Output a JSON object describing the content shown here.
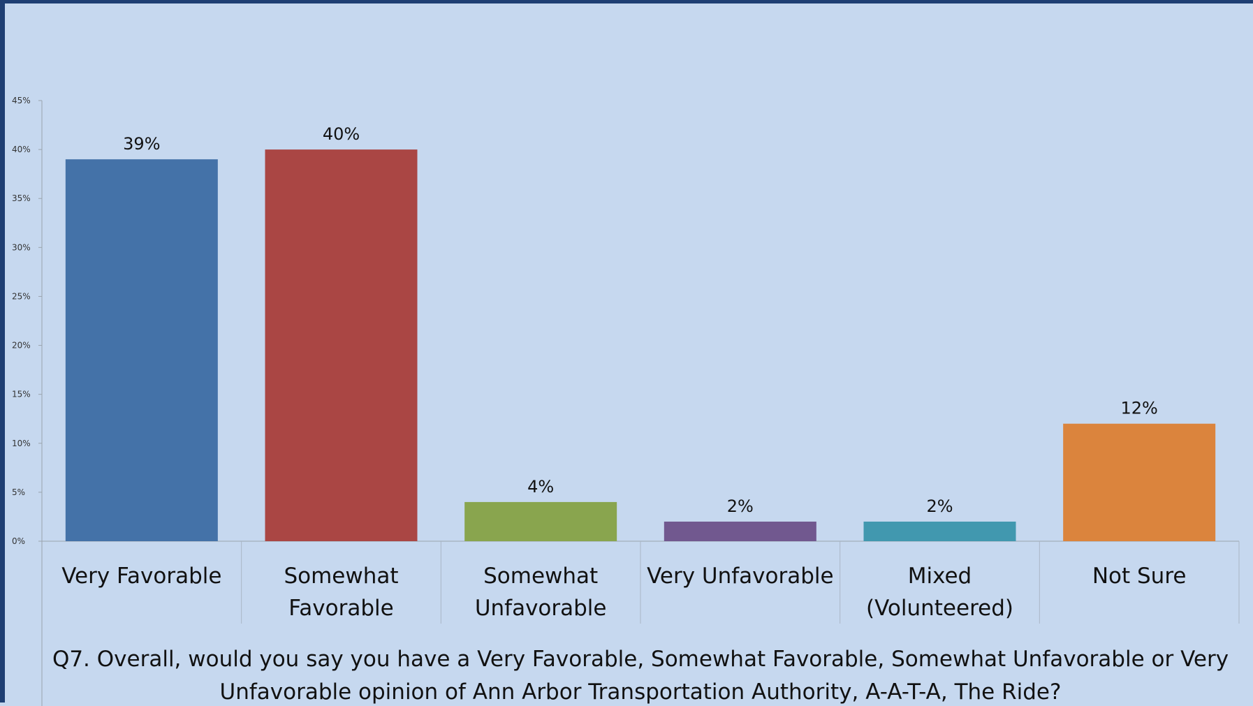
{
  "chart_data": {
    "type": "bar",
    "categories": [
      [
        "Very Favorable"
      ],
      [
        "Somewhat",
        "Favorable"
      ],
      [
        "Somewhat",
        "Unfavorable"
      ],
      [
        "Very Unfavorable"
      ],
      [
        "Mixed",
        "(Volunteered)"
      ],
      [
        "Not Sure"
      ]
    ],
    "values": [
      39,
      40,
      4,
      2,
      2,
      12
    ],
    "data_labels": [
      "39%",
      "40%",
      "4%",
      "2%",
      "2%",
      "12%"
    ],
    "colors": [
      "#4472a8",
      "#aa4644",
      "#89a54e",
      "#71588f",
      "#4198af",
      "#db843d"
    ],
    "ylim": [
      0,
      45
    ],
    "yticks": [
      0,
      5,
      10,
      15,
      20,
      25,
      30,
      35,
      40,
      45
    ],
    "ytick_labels": [
      "0%",
      "5%",
      "10%",
      "15%",
      "20%",
      "25%",
      "30%",
      "35%",
      "40%",
      "45%"
    ],
    "caption": [
      "Q7. Overall, would you say you have a Very Favorable, Somewhat Favorable, Somewhat Unfavorable or Very",
      "Unfavorable opinion of Ann Arbor Transportation Authority, A-A-T-A, The Ride?"
    ],
    "legend": "none",
    "grid": false
  }
}
